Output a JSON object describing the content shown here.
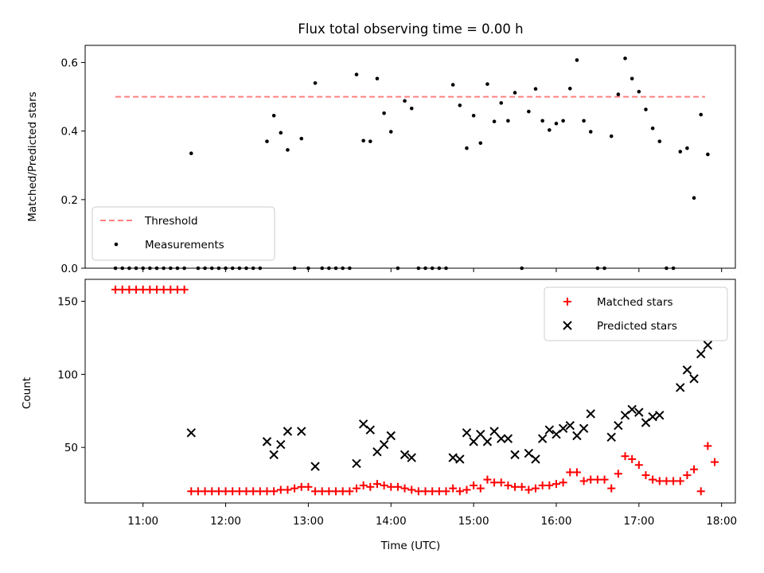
{
  "chart_data": [
    {
      "type": "scatter",
      "title": "Flux total observing time = 0.00 h",
      "xlabel": "",
      "ylabel": "Matched/Predicted stars",
      "xlim": [
        "10:18",
        "18:10"
      ],
      "ylim": [
        0,
        0.65
      ],
      "yticks": [
        0.0,
        0.2,
        0.4,
        0.6
      ],
      "ytick_labels": [
        "0.0",
        "0.2",
        "0.4",
        "0.6"
      ],
      "grid": false,
      "legend_position": "lower-left",
      "colors": {
        "threshold": "#ff7f7f",
        "measurements": "#000000"
      },
      "threshold": {
        "label": "Threshold",
        "y": 0.5,
        "x_range": [
          "10:40",
          "17:48"
        ]
      },
      "series": [
        {
          "name": "Measurements",
          "points": [
            [
              "10:40",
              0
            ],
            [
              "10:45",
              0
            ],
            [
              "10:50",
              0
            ],
            [
              "10:55",
              0
            ],
            [
              "11:00",
              0
            ],
            [
              "11:05",
              0
            ],
            [
              "11:10",
              0
            ],
            [
              "11:15",
              0
            ],
            [
              "11:20",
              0
            ],
            [
              "11:25",
              0
            ],
            [
              "11:30",
              0
            ],
            [
              "11:35",
              0.335
            ],
            [
              "11:40",
              0
            ],
            [
              "11:45",
              0
            ],
            [
              "11:50",
              0
            ],
            [
              "11:55",
              0
            ],
            [
              "12:00",
              0
            ],
            [
              "12:05",
              0
            ],
            [
              "12:10",
              0
            ],
            [
              "12:15",
              0
            ],
            [
              "12:20",
              0
            ],
            [
              "12:25",
              0
            ],
            [
              "12:30",
              0.37
            ],
            [
              "12:35",
              0.445
            ],
            [
              "12:40",
              0.395
            ],
            [
              "12:45",
              0.345
            ],
            [
              "12:50",
              0
            ],
            [
              "12:55",
              0.378
            ],
            [
              "13:00",
              0
            ],
            [
              "13:05",
              0.54
            ],
            [
              "13:10",
              0
            ],
            [
              "13:15",
              0
            ],
            [
              "13:20",
              0
            ],
            [
              "13:25",
              0
            ],
            [
              "13:30",
              0
            ],
            [
              "13:35",
              0.565
            ],
            [
              "13:40",
              0.372
            ],
            [
              "13:45",
              0.37
            ],
            [
              "13:50",
              0.553
            ],
            [
              "13:55",
              0.452
            ],
            [
              "14:00",
              0.398
            ],
            [
              "14:05",
              0
            ],
            [
              "14:10",
              0.488
            ],
            [
              "14:15",
              0.466
            ],
            [
              "14:20",
              0
            ],
            [
              "14:25",
              0
            ],
            [
              "14:30",
              0
            ],
            [
              "14:35",
              0
            ],
            [
              "14:40",
              0
            ],
            [
              "14:45",
              0.535
            ],
            [
              "14:50",
              0.475
            ],
            [
              "14:55",
              0.35
            ],
            [
              "15:00",
              0.445
            ],
            [
              "15:05",
              0.365
            ],
            [
              "15:10",
              0.537
            ],
            [
              "15:15",
              0.428
            ],
            [
              "15:20",
              0.482
            ],
            [
              "15:25",
              0.43
            ],
            [
              "15:30",
              0.512
            ],
            [
              "15:35",
              0
            ],
            [
              "15:40",
              0.457
            ],
            [
              "15:45",
              0.523
            ],
            [
              "15:50",
              0.43
            ],
            [
              "15:55",
              0.403
            ],
            [
              "16:00",
              0.422
            ],
            [
              "16:05",
              0.43
            ],
            [
              "16:10",
              0.524
            ],
            [
              "16:15",
              0.607
            ],
            [
              "16:20",
              0.43
            ],
            [
              "16:25",
              0.398
            ],
            [
              "16:30",
              0
            ],
            [
              "16:35",
              0
            ],
            [
              "16:40",
              0.385
            ],
            [
              "16:45",
              0.507
            ],
            [
              "16:50",
              0.612
            ],
            [
              "16:55",
              0.553
            ],
            [
              "17:00",
              0.515
            ],
            [
              "17:05",
              0.463
            ],
            [
              "17:10",
              0.408
            ],
            [
              "17:15",
              0.37
            ],
            [
              "17:20",
              0
            ],
            [
              "17:25",
              0
            ],
            [
              "17:30",
              0.34
            ],
            [
              "17:35",
              0.35
            ],
            [
              "17:40",
              0.205
            ],
            [
              "17:45",
              0.448
            ],
            [
              "17:50",
              0.332
            ]
          ]
        }
      ]
    },
    {
      "type": "scatter",
      "title": "",
      "xlabel": "Time (UTC)",
      "ylabel": "Count",
      "xlim": [
        "10:18",
        "18:10"
      ],
      "ylim": [
        12,
        165
      ],
      "xticks": [
        "11:00",
        "12:00",
        "13:00",
        "14:00",
        "15:00",
        "16:00",
        "17:00",
        "18:00"
      ],
      "yticks": [
        50,
        100,
        150
      ],
      "ytick_labels": [
        "50",
        "100",
        "150"
      ],
      "grid": false,
      "legend_position": "upper-right",
      "colors": {
        "matched": "#ff0000",
        "predicted": "#000000"
      },
      "series": [
        {
          "name": "Matched stars",
          "marker": "+",
          "points": [
            [
              "10:40",
              158
            ],
            [
              "10:45",
              158
            ],
            [
              "10:50",
              158
            ],
            [
              "10:55",
              158
            ],
            [
              "11:00",
              158
            ],
            [
              "11:05",
              158
            ],
            [
              "11:10",
              158
            ],
            [
              "11:15",
              158
            ],
            [
              "11:20",
              158
            ],
            [
              "11:25",
              158
            ],
            [
              "11:30",
              158
            ],
            [
              "11:35",
              20
            ],
            [
              "11:40",
              20
            ],
            [
              "11:45",
              20
            ],
            [
              "11:50",
              20
            ],
            [
              "11:55",
              20
            ],
            [
              "12:00",
              20
            ],
            [
              "12:05",
              20
            ],
            [
              "12:10",
              20
            ],
            [
              "12:15",
              20
            ],
            [
              "12:20",
              20
            ],
            [
              "12:25",
              20
            ],
            [
              "12:30",
              20
            ],
            [
              "12:35",
              20
            ],
            [
              "12:40",
              21
            ],
            [
              "12:45",
              21
            ],
            [
              "12:50",
              22
            ],
            [
              "12:55",
              23
            ],
            [
              "13:00",
              23
            ],
            [
              "13:05",
              20
            ],
            [
              "13:10",
              20
            ],
            [
              "13:15",
              20
            ],
            [
              "13:20",
              20
            ],
            [
              "13:25",
              20
            ],
            [
              "13:30",
              20
            ],
            [
              "13:35",
              22
            ],
            [
              "13:40",
              24
            ],
            [
              "13:45",
              23
            ],
            [
              "13:50",
              25
            ],
            [
              "13:55",
              24
            ],
            [
              "14:00",
              23
            ],
            [
              "14:05",
              23
            ],
            [
              "14:10",
              22
            ],
            [
              "14:15",
              21
            ],
            [
              "14:20",
              20
            ],
            [
              "14:25",
              20
            ],
            [
              "14:30",
              20
            ],
            [
              "14:35",
              20
            ],
            [
              "14:40",
              20
            ],
            [
              "14:45",
              22
            ],
            [
              "14:50",
              20
            ],
            [
              "14:55",
              21
            ],
            [
              "15:00",
              24
            ],
            [
              "15:05",
              22
            ],
            [
              "15:10",
              28
            ],
            [
              "15:15",
              26
            ],
            [
              "15:20",
              26
            ],
            [
              "15:25",
              24
            ],
            [
              "15:30",
              23
            ],
            [
              "15:35",
              23
            ],
            [
              "15:40",
              21
            ],
            [
              "15:45",
              22
            ],
            [
              "15:50",
              24
            ],
            [
              "15:55",
              24
            ],
            [
              "16:00",
              25
            ],
            [
              "16:05",
              26
            ],
            [
              "16:10",
              33
            ],
            [
              "16:15",
              33
            ],
            [
              "16:20",
              27
            ],
            [
              "16:25",
              28
            ],
            [
              "16:30",
              28
            ],
            [
              "16:35",
              28
            ],
            [
              "16:40",
              22
            ],
            [
              "16:45",
              32
            ],
            [
              "16:50",
              44
            ],
            [
              "16:55",
              42
            ],
            [
              "17:00",
              38
            ],
            [
              "17:05",
              31
            ],
            [
              "17:10",
              28
            ],
            [
              "17:15",
              27
            ],
            [
              "17:20",
              27
            ],
            [
              "17:25",
              27
            ],
            [
              "17:30",
              27
            ],
            [
              "17:35",
              31
            ],
            [
              "17:40",
              35
            ],
            [
              "17:45",
              20
            ],
            [
              "17:50",
              51
            ],
            [
              "17:55",
              40
            ]
          ]
        },
        {
          "name": "Predicted stars",
          "marker": "x",
          "points": [
            [
              "11:35",
              60
            ],
            [
              "12:30",
              54
            ],
            [
              "12:35",
              45
            ],
            [
              "12:40",
              52
            ],
            [
              "12:45",
              61
            ],
            [
              "12:55",
              61
            ],
            [
              "13:05",
              37
            ],
            [
              "13:35",
              39
            ],
            [
              "13:40",
              66
            ],
            [
              "13:45",
              62
            ],
            [
              "13:50",
              47
            ],
            [
              "13:55",
              52
            ],
            [
              "14:00",
              58
            ],
            [
              "14:10",
              45
            ],
            [
              "14:15",
              43
            ],
            [
              "14:45",
              43
            ],
            [
              "14:50",
              42
            ],
            [
              "14:55",
              60
            ],
            [
              "15:00",
              54
            ],
            [
              "15:05",
              59
            ],
            [
              "15:10",
              54
            ],
            [
              "15:15",
              61
            ],
            [
              "15:20",
              56
            ],
            [
              "15:25",
              56
            ],
            [
              "15:30",
              45
            ],
            [
              "15:40",
              46
            ],
            [
              "15:45",
              42
            ],
            [
              "15:50",
              56
            ],
            [
              "15:55",
              62
            ],
            [
              "16:00",
              59
            ],
            [
              "16:05",
              63
            ],
            [
              "16:10",
              65
            ],
            [
              "16:15",
              58
            ],
            [
              "16:20",
              63
            ],
            [
              "16:25",
              73
            ],
            [
              "16:40",
              57
            ],
            [
              "16:45",
              65
            ],
            [
              "16:50",
              72
            ],
            [
              "16:55",
              76
            ],
            [
              "17:00",
              74
            ],
            [
              "17:05",
              67
            ],
            [
              "17:10",
              71
            ],
            [
              "17:15",
              72
            ],
            [
              "17:30",
              91
            ],
            [
              "17:35",
              103
            ],
            [
              "17:40",
              97
            ],
            [
              "17:45",
              114
            ],
            [
              "17:50",
              120
            ]
          ]
        }
      ]
    }
  ]
}
